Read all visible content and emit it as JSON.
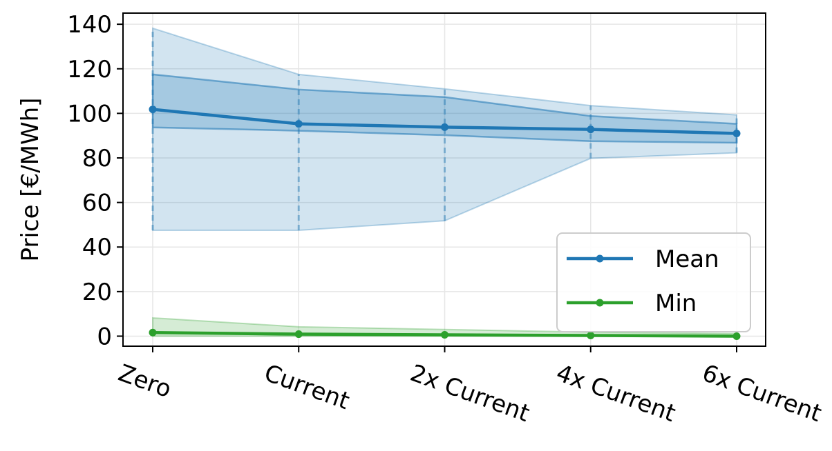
{
  "chart_data": {
    "type": "line",
    "categories": [
      "Zero",
      "Current",
      "2x Current",
      "4x Current",
      "6x Current"
    ],
    "ylabel": "Price [€/MWh]",
    "xlabel": "",
    "ylim": [
      -4.5,
      145
    ],
    "yticks": [
      0,
      20,
      40,
      60,
      80,
      100,
      120,
      140
    ],
    "grid": true,
    "legend_position": "lower-right",
    "series": [
      {
        "name": "Mean",
        "color": "#1f77b4",
        "values": [
          101.8,
          95.3,
          93.8,
          92.8,
          91.0
        ],
        "band_outer": {
          "low": [
            47.5,
            47.5,
            51.8,
            79.8,
            82.3
          ],
          "high": [
            138.2,
            117.5,
            111.0,
            103.5,
            99.3
          ]
        },
        "band_inner": {
          "low": [
            93.7,
            92.2,
            90.2,
            87.5,
            86.8
          ],
          "high": [
            117.5,
            110.7,
            107.3,
            98.8,
            95.3
          ]
        }
      },
      {
        "name": "Min",
        "color": "#2ca02c",
        "values": [
          1.6,
          0.9,
          0.6,
          0.3,
          0.0
        ],
        "band_outer": {
          "low": [
            0.0,
            0.0,
            0.0,
            0.0,
            0.0
          ],
          "high": [
            8.2,
            4.2,
            3.0,
            1.8,
            1.2
          ]
        }
      }
    ]
  }
}
